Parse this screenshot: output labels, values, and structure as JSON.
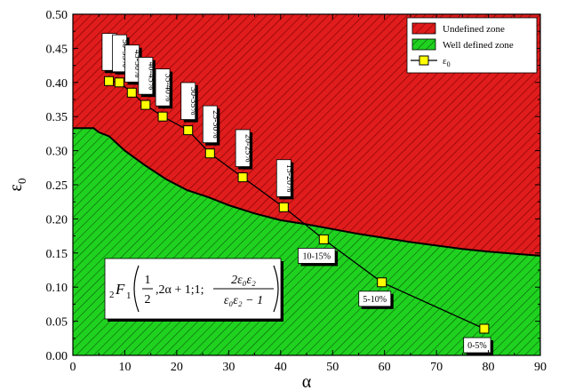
{
  "chart_data": {
    "type": "area",
    "xlabel": "α",
    "ylabel": "ε",
    "ylabel_sub": "0",
    "xlim": [
      0,
      90
    ],
    "ylim": [
      0,
      0.5
    ],
    "xticks": [
      "0",
      "10",
      "20",
      "30",
      "40",
      "50",
      "60",
      "70",
      "80",
      "90"
    ],
    "yticks": [
      "0.00",
      "0.05",
      "0.10",
      "0.15",
      "0.20",
      "0.25",
      "0.30",
      "0.35",
      "0.40",
      "0.45",
      "0.50"
    ],
    "grid": false,
    "legend_position": "top-right",
    "boundary": {
      "x": [
        0,
        4,
        5,
        7,
        10,
        14,
        18,
        22,
        26,
        30,
        35,
        40,
        45,
        50,
        55,
        60,
        65,
        70,
        75,
        80,
        85,
        90
      ],
      "y": [
        0.333,
        0.333,
        0.327,
        0.321,
        0.3,
        0.278,
        0.258,
        0.242,
        0.232,
        0.22,
        0.208,
        0.198,
        0.192,
        0.185,
        0.178,
        0.172,
        0.166,
        0.161,
        0.156,
        0.152,
        0.149,
        0.146
      ]
    },
    "series": [
      {
        "name": "Undefined zone",
        "kind": "region-above",
        "color": "#e01c1c"
      },
      {
        "name": "Well defined zone",
        "kind": "region-below",
        "color": "#1fd21f"
      },
      {
        "name": "ε",
        "name_sub": "0",
        "kind": "line-markers",
        "color": "#ffff00",
        "x": [
          6.95,
          8.95,
          11.35,
          14,
          17.3,
          22.2,
          26.4,
          32.7,
          40.6,
          48.3,
          59.5,
          79.2
        ],
        "y": [
          0.402,
          0.4,
          0.385,
          0.367,
          0.35,
          0.33,
          0.296,
          0.261,
          0.217,
          0.17,
          0.107,
          0.039
        ]
      }
    ],
    "data_labels": [
      {
        "text": "55-60%",
        "x": 7.0,
        "y": 0.402
      },
      {
        "text": "50-55%",
        "x": 9.0,
        "y": 0.4
      },
      {
        "text": "45-50%",
        "x": 11.4,
        "y": 0.385
      },
      {
        "text": "40-45%",
        "x": 14.0,
        "y": 0.367
      },
      {
        "text": "35-40%",
        "x": 17.3,
        "y": 0.35
      },
      {
        "text": "30-35%",
        "x": 22.2,
        "y": 0.33
      },
      {
        "text": "25-30%",
        "x": 26.4,
        "y": 0.296
      },
      {
        "text": "20-25%",
        "x": 32.7,
        "y": 0.261
      },
      {
        "text": "15-20%",
        "x": 40.6,
        "y": 0.217
      },
      {
        "text": "10-15%",
        "x": 48.3,
        "y": 0.17
      },
      {
        "text": "5-10%",
        "x": 59.5,
        "y": 0.107
      },
      {
        "text": "0-5%",
        "x": 79.2,
        "y": 0.039
      }
    ],
    "formula": {
      "lead_sub": "2",
      "F": "F",
      "F_sub": "1",
      "frac1_num": "1",
      "frac1_den": "2",
      "middle": ",2α + 1;1;",
      "frac2_num": "2ε₀ε₂",
      "frac2_den": "ε₀ε₂ − 1"
    }
  }
}
